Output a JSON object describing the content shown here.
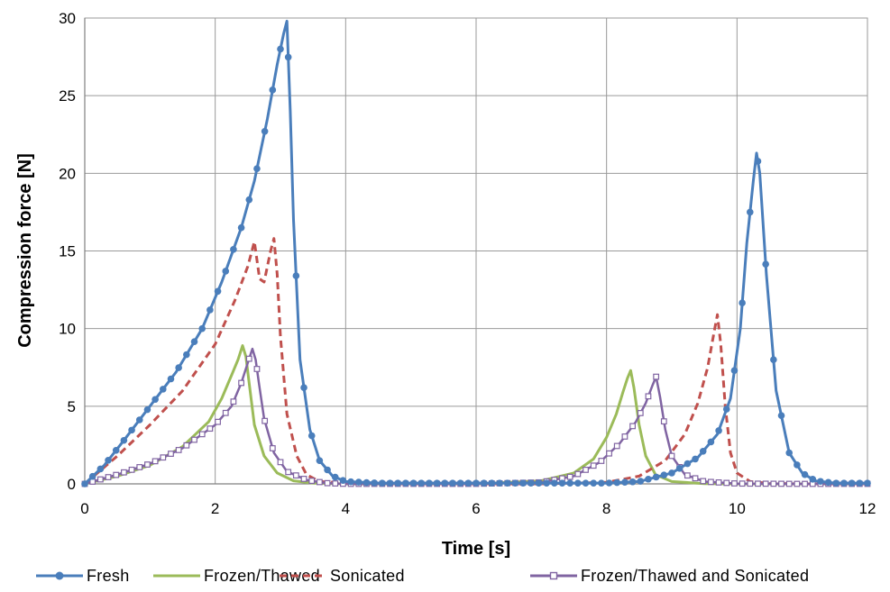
{
  "chart_data": {
    "type": "line",
    "title": "",
    "xlabel": "Time [s]",
    "ylabel": "Compression force [N]",
    "xlim": [
      0,
      12
    ],
    "ylim": [
      0,
      30
    ],
    "xticks": [
      0,
      2,
      4,
      6,
      8,
      10,
      12
    ],
    "yticks": [
      0,
      5,
      10,
      15,
      20,
      25,
      30
    ],
    "grid": true,
    "legend_position": "bottom",
    "series": [
      {
        "name": "Fresh",
        "color": "#4a7ebb",
        "style": "solid-circle-markers",
        "x": [
          0,
          0.3,
          0.6,
          1.0,
          1.4,
          1.8,
          2.1,
          2.4,
          2.6,
          2.8,
          2.95,
          3.05,
          3.1,
          3.15,
          3.2,
          3.3,
          3.45,
          3.6,
          3.8,
          4.0,
          4.5,
          5,
          6,
          7,
          8,
          8.5,
          9.0,
          9.4,
          9.7,
          9.9,
          10.05,
          10.15,
          10.25,
          10.3,
          10.35,
          10.45,
          10.6,
          10.8,
          11.0,
          11.2,
          11.5,
          12
        ],
        "y": [
          0,
          1.2,
          2.8,
          5.0,
          7.2,
          10.0,
          13.0,
          16.5,
          19.5,
          23.5,
          27.0,
          29.0,
          29.8,
          24.0,
          17.0,
          8.0,
          3.5,
          1.5,
          0.5,
          0.15,
          0.05,
          0.05,
          0.05,
          0.05,
          0.05,
          0.15,
          0.7,
          1.7,
          3.2,
          5.5,
          10.0,
          15.5,
          19.5,
          21.3,
          20.0,
          13.5,
          6.0,
          2.0,
          0.7,
          0.2,
          0.05,
          0.05
        ]
      },
      {
        "name": "Frozen/Thawed",
        "color": "#9bbb59",
        "style": "solid",
        "x": [
          0,
          0.5,
          1.0,
          1.5,
          1.9,
          2.1,
          2.25,
          2.35,
          2.42,
          2.47,
          2.52,
          2.6,
          2.75,
          2.95,
          3.2,
          3.5,
          4.0,
          5,
          6,
          7.0,
          7.5,
          7.8,
          8.0,
          8.15,
          8.25,
          8.32,
          8.37,
          8.42,
          8.5,
          8.6,
          8.75,
          9.0,
          9.5,
          10,
          11,
          12
        ],
        "y": [
          0,
          0.5,
          1.2,
          2.4,
          4.0,
          5.5,
          7.0,
          8.0,
          8.9,
          8.2,
          6.5,
          3.8,
          1.8,
          0.7,
          0.2,
          0.05,
          0.0,
          0.0,
          0.0,
          0.2,
          0.7,
          1.6,
          3.0,
          4.5,
          5.9,
          6.8,
          7.3,
          6.2,
          3.8,
          1.8,
          0.6,
          0.15,
          0.02,
          0.0,
          0.0,
          0.0
        ],
        "xticks_note": ""
      },
      {
        "name": "Sonicated",
        "color": "#c0504d",
        "style": "dashed",
        "x": [
          0,
          0.5,
          1.0,
          1.5,
          2.0,
          2.3,
          2.5,
          2.6,
          2.68,
          2.75,
          2.85,
          2.9,
          2.95,
          3.0,
          3.1,
          3.25,
          3.4,
          3.6,
          4.0,
          5,
          6,
          7,
          8.0,
          8.5,
          8.9,
          9.2,
          9.4,
          9.55,
          9.65,
          9.7,
          9.75,
          9.82,
          9.9,
          10.0,
          10.2,
          10.5,
          11,
          12
        ],
        "y": [
          0,
          1.8,
          3.8,
          6.0,
          9.0,
          11.8,
          14.0,
          15.6,
          13.2,
          13.0,
          15.0,
          15.8,
          13.5,
          9.5,
          4.5,
          1.8,
          0.6,
          0.15,
          0.05,
          0.0,
          0.0,
          0.0,
          0.1,
          0.5,
          1.5,
          3.2,
          5.2,
          7.5,
          9.8,
          10.9,
          9.0,
          5.0,
          2.0,
          0.7,
          0.15,
          0.03,
          0.0,
          0.0
        ]
      },
      {
        "name": "Frozen/Thawed and Sonicated",
        "color": "#8064a2",
        "style": "solid-square-markers",
        "x": [
          0,
          0.5,
          1.0,
          1.5,
          2.0,
          2.25,
          2.4,
          2.5,
          2.57,
          2.62,
          2.67,
          2.75,
          2.9,
          3.1,
          3.4,
          3.7,
          4.0,
          5,
          6,
          7.0,
          7.5,
          7.9,
          8.2,
          8.45,
          8.6,
          8.7,
          8.76,
          8.82,
          8.9,
          9.0,
          9.2,
          9.5,
          10,
          11,
          12
        ],
        "y": [
          0,
          0.6,
          1.3,
          2.3,
          3.8,
          5.0,
          6.5,
          7.8,
          8.7,
          8.0,
          6.5,
          4.2,
          2.0,
          0.8,
          0.25,
          0.05,
          0.0,
          0.0,
          0.0,
          0.1,
          0.5,
          1.4,
          2.6,
          4.0,
          5.2,
          6.3,
          6.9,
          5.6,
          3.5,
          1.8,
          0.6,
          0.15,
          0.02,
          0.0,
          0.0
        ]
      }
    ]
  }
}
